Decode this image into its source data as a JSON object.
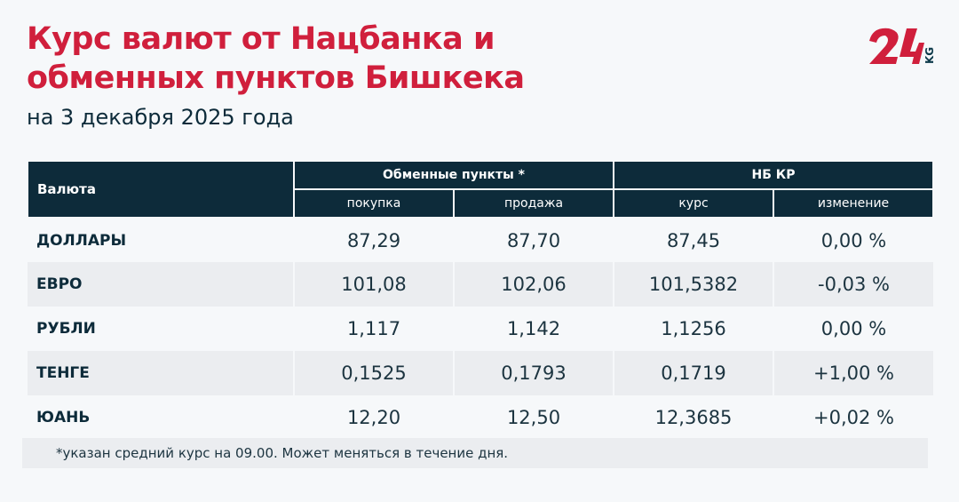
{
  "title_line1": "Курс валют от Нацбанка и",
  "title_line2": "обменных пунктов Бишкека",
  "subtitle": "на 3 декабря 2025 года",
  "logo": {
    "text": "24",
    "suffix": "KG",
    "color": "#d01f3c"
  },
  "table": {
    "col_currency": "Валюта",
    "group_exchange": "Обменные пункты *",
    "group_nb": "НБ КР",
    "sub_buy": "покупка",
    "sub_sell": "продажа",
    "sub_rate": "курс",
    "sub_change": "изменение",
    "rows": [
      {
        "name": "ДОЛЛАРЫ",
        "buy": "87,29",
        "sell": "87,70",
        "rate": "87,45",
        "change": "0,00 %"
      },
      {
        "name": "ЕВРО",
        "buy": "101,08",
        "sell": "102,06",
        "rate": "101,5382",
        "change": "-0,03 %"
      },
      {
        "name": "РУБЛИ",
        "buy": "1,117",
        "sell": "1,142",
        "rate": "1,1256",
        "change": "0,00 %"
      },
      {
        "name": "ТЕНГЕ",
        "buy": "0,1525",
        "sell": "0,1793",
        "rate": "0,1719",
        "change": "+1,00 %"
      },
      {
        "name": "ЮАНЬ",
        "buy": "12,20",
        "sell": "12,50",
        "rate": "12,3685",
        "change": "+0,02 %"
      }
    ]
  },
  "footnote": "*указан средний курс на 09.00. Может меняться в течение дня."
}
